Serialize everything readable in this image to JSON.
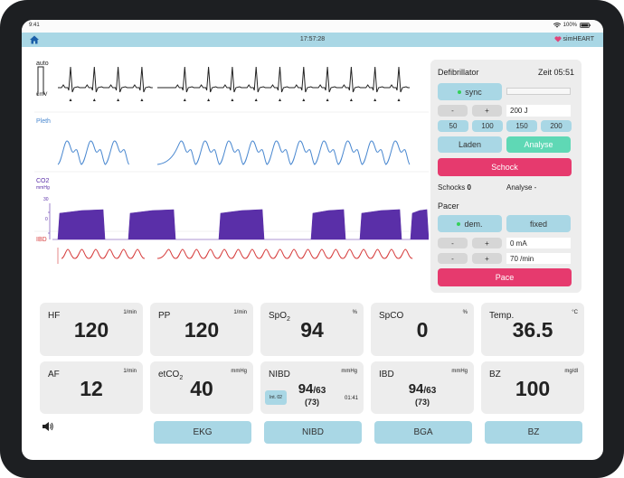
{
  "status_bar": {
    "time": "9:41",
    "battery": "100%"
  },
  "topbar": {
    "clock": "17:57:28",
    "brand": "simHEART"
  },
  "waves": {
    "ecg": {
      "label": "auto",
      "scale": "1mV",
      "color": "#222222"
    },
    "pleth": {
      "label": "Pleth",
      "color": "#4a88d0"
    },
    "co2": {
      "label": "CO2",
      "unit": "mmHg",
      "tick_high": "30",
      "tick_low": "0",
      "color": "#5a2fa8"
    },
    "ibd": {
      "label": "IBD",
      "color": "#d63b3b"
    }
  },
  "defib": {
    "title": "Defibrillator",
    "time_label": "Zeit 05:51",
    "sync_label": "sync",
    "minus": "-",
    "plus": "+",
    "energy_value": "200 J",
    "presets": [
      "50",
      "100",
      "150",
      "200"
    ],
    "laden_label": "Laden",
    "analyse_label": "Analyse",
    "schock_label": "Schock",
    "schocks_label": "Schocks",
    "schocks_count": "0",
    "analyse_status": "Analyse -",
    "pacer_title": "Pacer",
    "dem_label": "dem.",
    "fixed_label": "fixed",
    "current_value": "0 mA",
    "rate_value": "70 /min",
    "pace_label": "Pace"
  },
  "vitals": [
    {
      "label": "HF",
      "unit": "1/min",
      "value": "120"
    },
    {
      "label": "PP",
      "unit": "1/min",
      "value": "120"
    },
    {
      "label": "SpO",
      "label_sub": "2",
      "unit": "%",
      "value": "94"
    },
    {
      "label": "SpCO",
      "unit": "%",
      "value": "0"
    },
    {
      "label": "Temp.",
      "unit": "°C",
      "value": "36.5"
    },
    {
      "label": "AF",
      "unit": "1/min",
      "value": "12"
    },
    {
      "label": "etCO",
      "label_sub": "2",
      "unit": "mmHg",
      "value": "40"
    },
    {
      "label": "NIBD",
      "unit": "mmHg",
      "value": "94",
      "value_sub": "/63",
      "mean": "(73)",
      "interval": "Int. 02",
      "timer": "01:41"
    },
    {
      "label": "IBD",
      "unit": "mmHg",
      "value": "94",
      "value_sub": "/63",
      "mean": "(73)"
    },
    {
      "label": "BZ",
      "unit": "mg/dl",
      "value": "100"
    }
  ],
  "bottom_buttons": [
    "EKG",
    "NIBD",
    "BGA",
    "BZ"
  ],
  "colors": {
    "accent": "#a9d7e5",
    "analyse": "#5fd8b5",
    "shock": "#e63a6e",
    "panel": "#ededed"
  }
}
